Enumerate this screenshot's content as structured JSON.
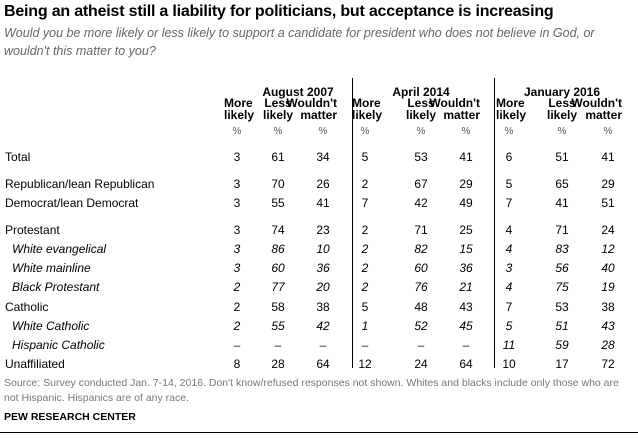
{
  "title": "Being an atheist still a liability for politicians, but acceptance is increasing",
  "subtitle": "Would you be more likely or less likely to support a candidate for president who does not believe in God, or wouldn't this matter to you?",
  "chart_data": {
    "type": "table",
    "groups": [
      "August 2007",
      "April 2014",
      "January 2016"
    ],
    "columns": [
      [
        "More",
        "likely"
      ],
      [
        "Less",
        "likely"
      ],
      [
        "Wouldn't",
        "matter"
      ]
    ],
    "unit": "%",
    "rows": [
      {
        "label": "Total",
        "sub": false,
        "values": [
          "3",
          "61",
          "34",
          "5",
          "53",
          "41",
          "6",
          "51",
          "41"
        ]
      },
      {
        "label": "Republican/lean Republican",
        "sub": false,
        "values": [
          "3",
          "70",
          "26",
          "2",
          "67",
          "29",
          "5",
          "65",
          "29"
        ]
      },
      {
        "label": "Democrat/lean Democrat",
        "sub": false,
        "values": [
          "3",
          "55",
          "41",
          "7",
          "42",
          "49",
          "7",
          "41",
          "51"
        ]
      },
      {
        "label": "Protestant",
        "sub": false,
        "values": [
          "3",
          "74",
          "23",
          "2",
          "71",
          "25",
          "4",
          "71",
          "24"
        ]
      },
      {
        "label": "White evangelical",
        "sub": true,
        "values": [
          "3",
          "86",
          "10",
          "2",
          "82",
          "15",
          "4",
          "83",
          "12"
        ]
      },
      {
        "label": "White mainline",
        "sub": true,
        "values": [
          "3",
          "60",
          "36",
          "2",
          "60",
          "36",
          "3",
          "56",
          "40"
        ]
      },
      {
        "label": "Black Protestant",
        "sub": true,
        "values": [
          "2",
          "77",
          "20",
          "2",
          "76",
          "21",
          "4",
          "75",
          "19"
        ]
      },
      {
        "label": "Catholic",
        "sub": false,
        "values": [
          "2",
          "58",
          "38",
          "5",
          "48",
          "43",
          "7",
          "53",
          "38"
        ]
      },
      {
        "label": "White Catholic",
        "sub": true,
        "values": [
          "2",
          "55",
          "42",
          "1",
          "52",
          "45",
          "5",
          "51",
          "43"
        ]
      },
      {
        "label": "Hispanic Catholic",
        "sub": true,
        "values": [
          "–",
          "–",
          "–",
          "–",
          "–",
          "–",
          "11",
          "59",
          "28"
        ]
      },
      {
        "label": "Unaffiliated",
        "sub": false,
        "values": [
          "8",
          "28",
          "64",
          "12",
          "24",
          "64",
          "10",
          "17",
          "72"
        ]
      }
    ]
  },
  "source": "Source: Survey conducted Jan. 7-14, 2016. Don't know/refused responses not shown. Whites and blacks include only those who are not Hispanic. Hispanics are of any race.",
  "org": "PEW RESEARCH CENTER"
}
